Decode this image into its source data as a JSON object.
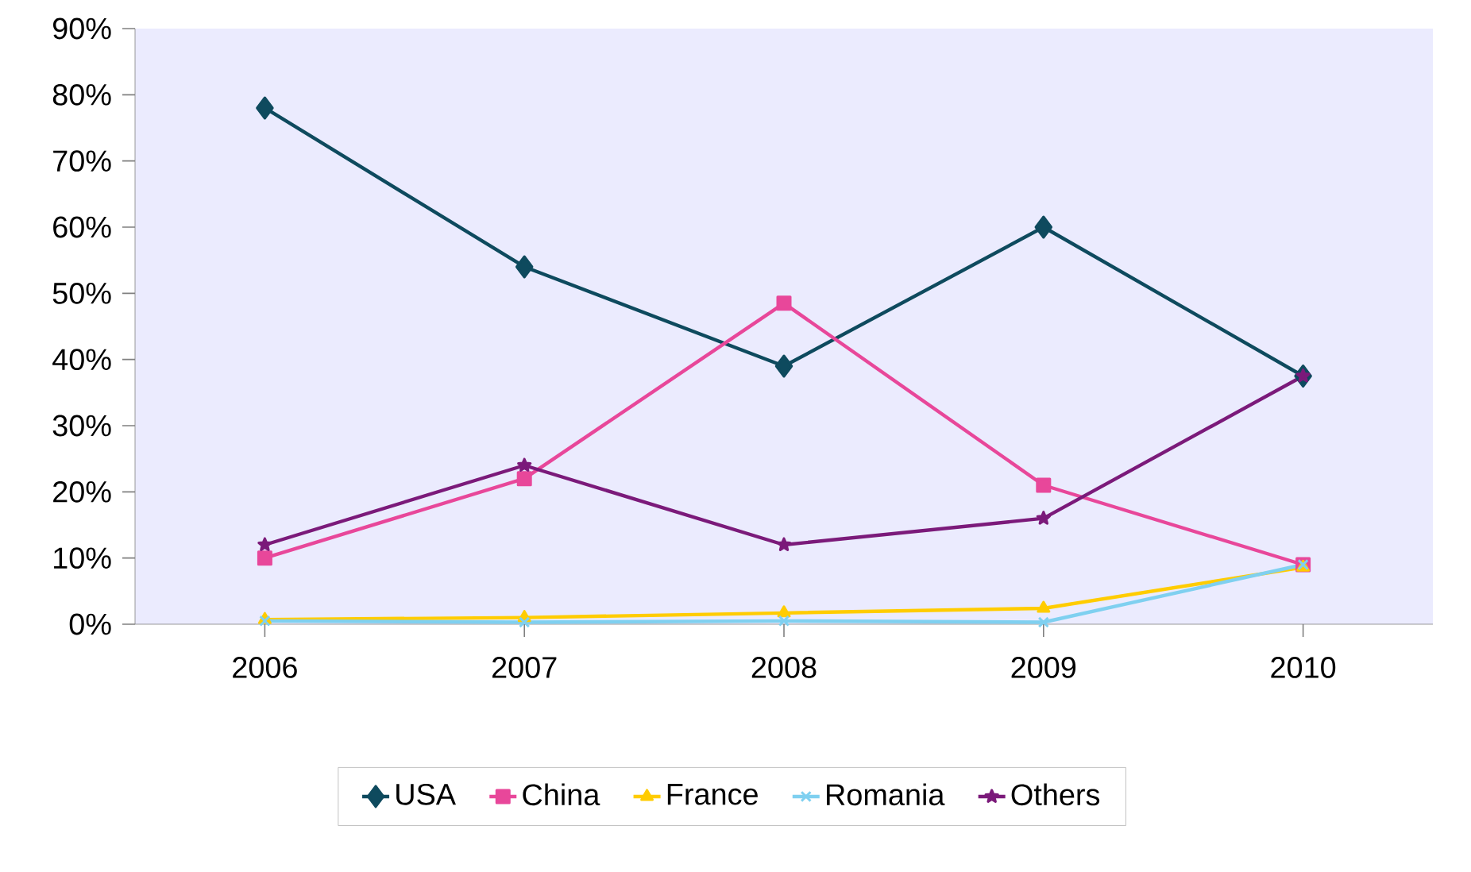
{
  "chart_data": {
    "type": "line",
    "categories": [
      "2006",
      "2007",
      "2008",
      "2009",
      "2010"
    ],
    "series": [
      {
        "name": "USA",
        "color": "#0e4a5e",
        "marker": "diamond",
        "values": [
          78,
          54,
          39,
          60,
          37.5
        ]
      },
      {
        "name": "China",
        "color": "#e8479a",
        "marker": "square",
        "values": [
          10,
          22,
          48.5,
          21,
          9
        ]
      },
      {
        "name": "France",
        "color": "#ffcc00",
        "marker": "triangle",
        "values": [
          0.7,
          1,
          1.7,
          2.4,
          8.6
        ]
      },
      {
        "name": "Romania",
        "color": "#7fd0f0",
        "marker": "cross",
        "values": [
          0.5,
          0.3,
          0.5,
          0.3,
          9
        ]
      },
      {
        "name": "Others",
        "color": "#7b1a7a",
        "marker": "star",
        "values": [
          12,
          24,
          12,
          16,
          37.5
        ]
      }
    ],
    "ylim": [
      0,
      90
    ],
    "yticks": [
      {
        "value": 0,
        "label": "0%"
      },
      {
        "value": 10,
        "label": "10%"
      },
      {
        "value": 20,
        "label": "20%"
      },
      {
        "value": 30,
        "label": "30%"
      },
      {
        "value": 40,
        "label": "40%"
      },
      {
        "value": 50,
        "label": "50%"
      },
      {
        "value": 60,
        "label": "60%"
      },
      {
        "value": 70,
        "label": "70%"
      },
      {
        "value": 80,
        "label": "80%"
      },
      {
        "value": 90,
        "label": "90%"
      }
    ],
    "grid": false,
    "legend": "bottom",
    "line_style": "solid"
  }
}
